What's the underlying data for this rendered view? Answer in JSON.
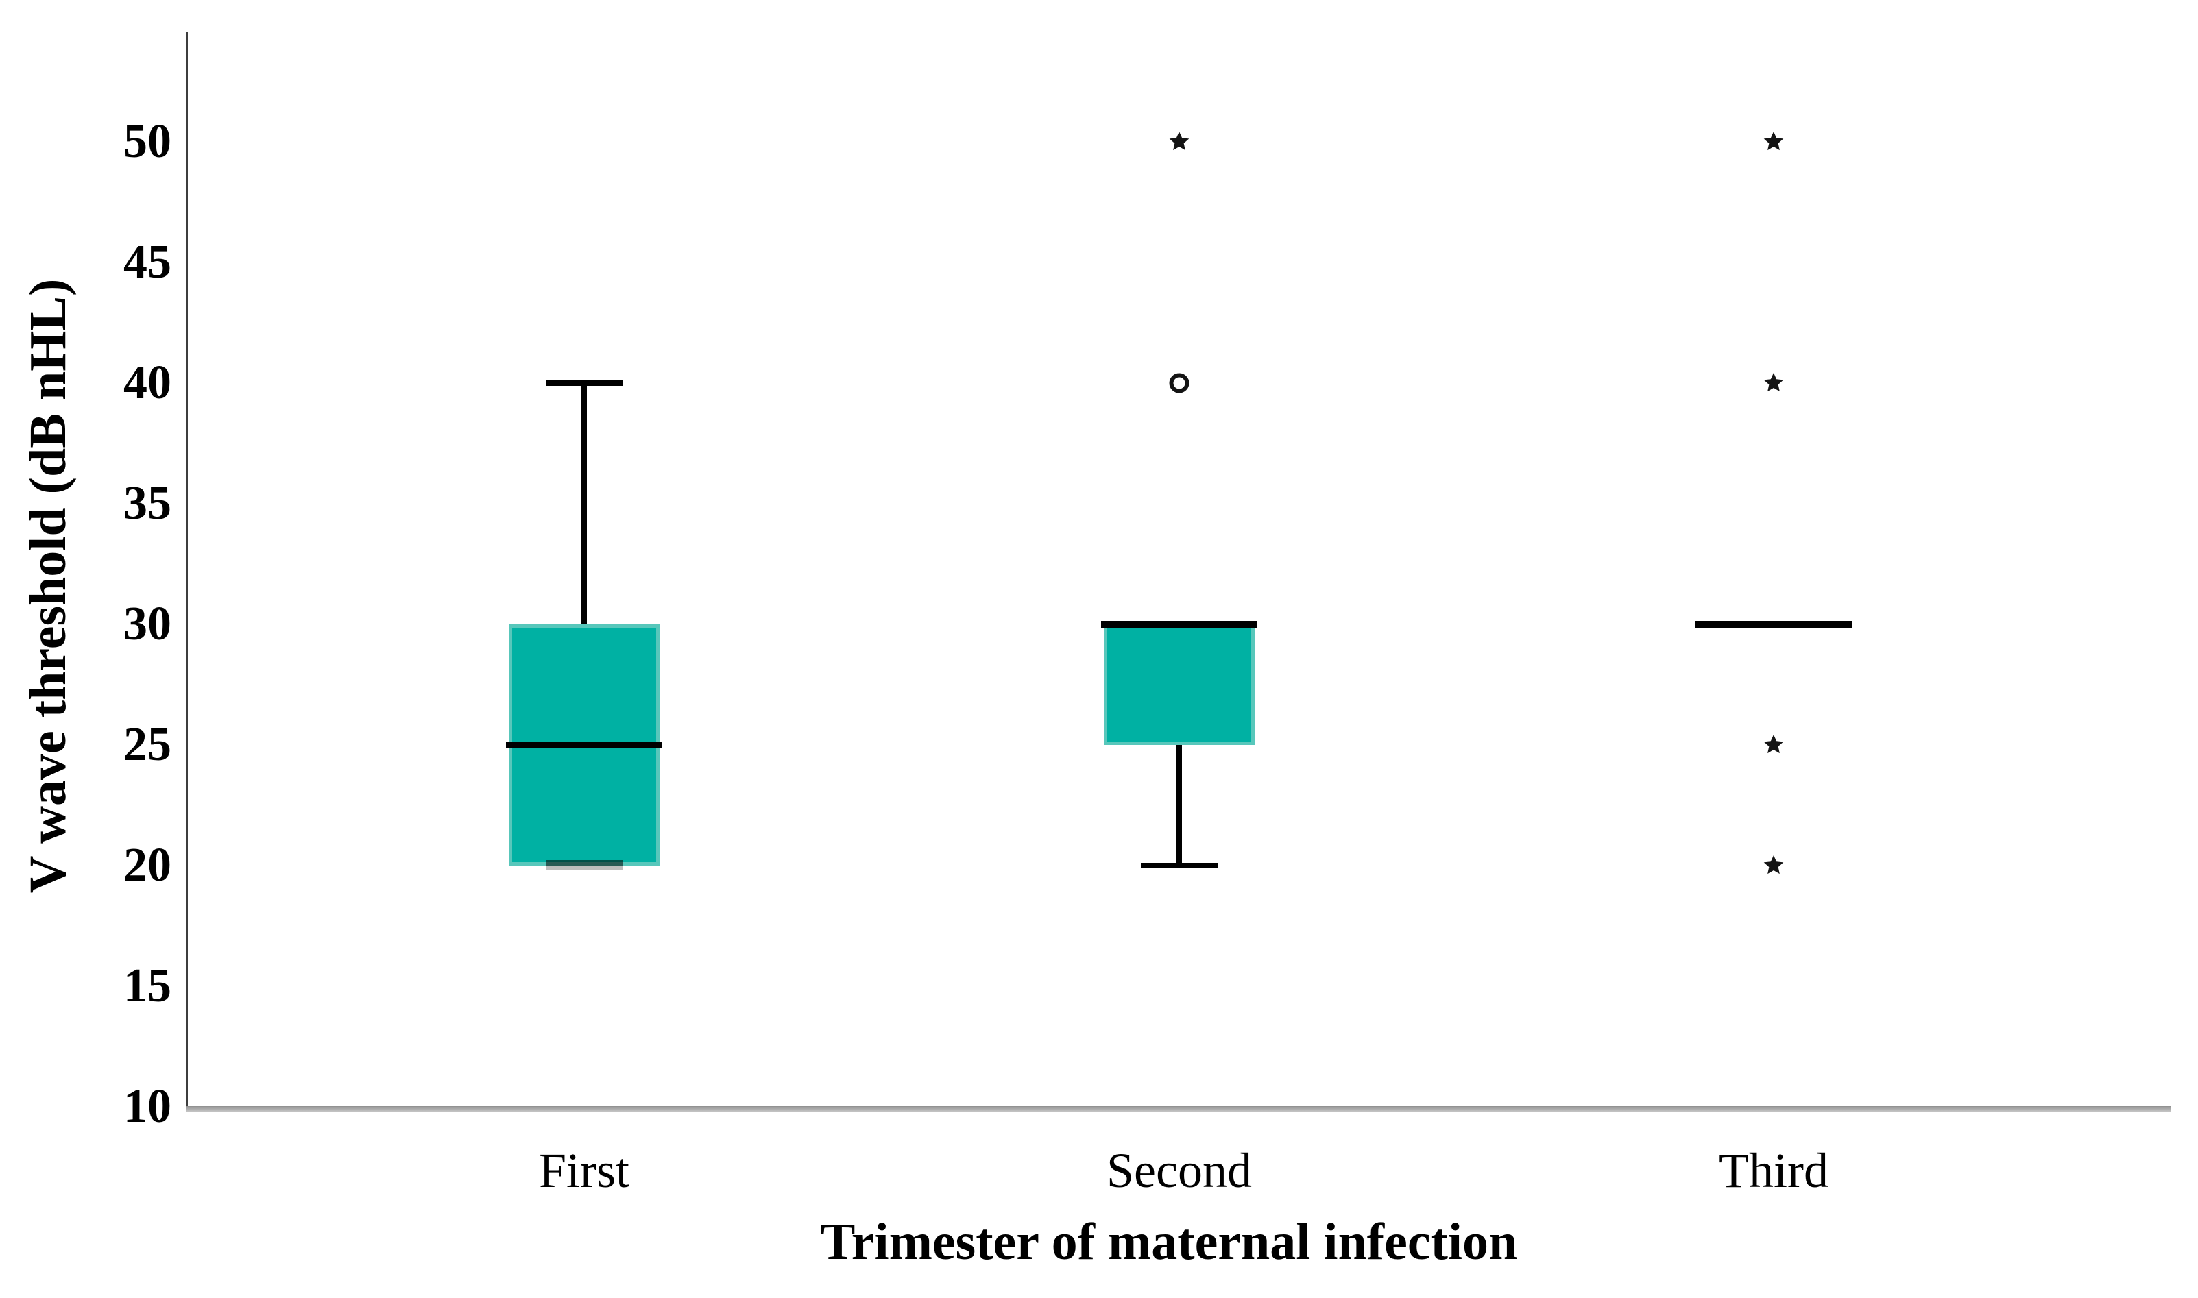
{
  "figure": {
    "background_color": "#ffffff"
  },
  "chart_data": {
    "type": "boxplot",
    "title": "",
    "xlabel": "Trimester of maternal infection",
    "ylabel": "V wave threshold (dB nHL)",
    "categories": [
      "First",
      "Second",
      "Third"
    ],
    "y_ticks": [
      50,
      45,
      40,
      35,
      30,
      25,
      20,
      15,
      10
    ],
    "ylim": [
      10,
      55
    ],
    "grid": false,
    "legend": "none",
    "colors": {
      "box_fill": "#00b1a3",
      "box_border": "#58c7bb",
      "median_whisker": "#000000",
      "y_axis_line": "#3d3d3d",
      "x_axis_line": "#a0a0a0",
      "text": "#000000"
    },
    "series": [
      {
        "category": "First",
        "whisker_low": 20,
        "q1": 20,
        "median": 25,
        "q3": 30,
        "whisker_high": 40,
        "outliers": []
      },
      {
        "category": "Second",
        "whisker_low": 20,
        "q1": 25,
        "median": 30,
        "q3": 30,
        "whisker_high": 30,
        "outliers": [
          {
            "value": 40,
            "marker": "circle"
          },
          {
            "value": 50,
            "marker": "star"
          }
        ]
      },
      {
        "category": "Third",
        "whisker_low": 30,
        "q1": 30,
        "median": 30,
        "q3": 30,
        "whisker_high": 30,
        "outliers": [
          {
            "value": 20,
            "marker": "star"
          },
          {
            "value": 25,
            "marker": "star"
          },
          {
            "value": 40,
            "marker": "star"
          },
          {
            "value": 50,
            "marker": "star"
          }
        ]
      }
    ]
  }
}
